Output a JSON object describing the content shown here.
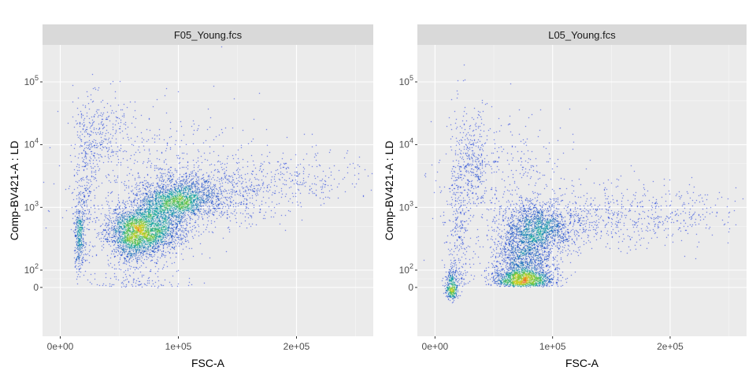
{
  "chart_data": [
    {
      "type": "scatter",
      "panel_title": "F05_Young.fcs",
      "xlabel": "FSC-A",
      "ylabel": "Comp-BV421-A : LD",
      "x_ticks": [
        "0e+00",
        "1e+05",
        "2e+05"
      ],
      "x_tick_values": [
        0,
        100000,
        200000
      ],
      "xlim": [
        -15000,
        265000
      ],
      "y_ticks": [
        {
          "label": "0",
          "value": 0
        },
        {
          "label": "10",
          "exp": "2",
          "value": 100
        },
        {
          "label": "10",
          "exp": "3",
          "value": 1000
        },
        {
          "label": "10",
          "exp": "4",
          "value": 10000
        },
        {
          "label": "10",
          "exp": "5",
          "value": 100000
        }
      ],
      "y_scale": "biexponential",
      "grid": true,
      "density_coloring": true,
      "populations": [
        {
          "x": 72000,
          "y": 450,
          "sx": 16000,
          "sy": 0.2,
          "n": 2600
        },
        {
          "x": 98000,
          "y": 1300,
          "sx": 16000,
          "sy": 0.15,
          "n": 1700
        },
        {
          "x": 60000,
          "y": 320,
          "sx": 9000,
          "sy": 0.22,
          "n": 700
        },
        {
          "x": 125000,
          "y": 1600,
          "sx": 28000,
          "sy": 0.25,
          "n": 700
        },
        {
          "x": 190000,
          "y": 2800,
          "sx": 38000,
          "sy": 0.22,
          "n": 350
        },
        {
          "x": 16000,
          "y": 350,
          "sx": 2000,
          "sy": 0.25,
          "n": 350
        },
        {
          "x": 20000,
          "y": 2000,
          "sx": 5000,
          "sy": 0.6,
          "n": 300
        },
        {
          "x": 35000,
          "y": 15000,
          "sx": 12000,
          "sy": 0.3,
          "n": 250
        },
        {
          "x": 80000,
          "y": 3500,
          "sx": 40000,
          "sy": 0.55,
          "n": 500
        },
        {
          "x": 65000,
          "y": 40,
          "sx": 20000,
          "sy": 0.45,
          "n": 120
        }
      ]
    },
    {
      "type": "scatter",
      "panel_title": "L05_Young.fcs",
      "xlabel": "FSC-A",
      "ylabel": "Comp-BV421-A : LD",
      "x_ticks": [
        "0e+00",
        "1e+05",
        "2e+05"
      ],
      "x_tick_values": [
        0,
        100000,
        200000
      ],
      "xlim": [
        -15000,
        265000
      ],
      "y_ticks": [
        {
          "label": "0",
          "value": 0
        },
        {
          "label": "10",
          "exp": "2",
          "value": 100
        },
        {
          "label": "10",
          "exp": "3",
          "value": 1000
        },
        {
          "label": "10",
          "exp": "4",
          "value": 10000
        },
        {
          "label": "10",
          "exp": "5",
          "value": 100000
        }
      ],
      "y_scale": "biexponential",
      "grid": true,
      "density_coloring": true,
      "populations": [
        {
          "x": 75000,
          "y": 80,
          "sx": 12000,
          "sy": 0.4,
          "n": 2500
        },
        {
          "x": 88000,
          "y": 450,
          "sx": 15000,
          "sy": 0.2,
          "n": 1500
        },
        {
          "x": 140000,
          "y": 700,
          "sx": 42000,
          "sy": 0.25,
          "n": 600
        },
        {
          "x": 14000,
          "y": 0,
          "sx": 2500,
          "sy": 0.35,
          "n": 400
        },
        {
          "x": 20000,
          "y": 800,
          "sx": 5000,
          "sy": 0.8,
          "n": 350
        },
        {
          "x": 33000,
          "y": 6000,
          "sx": 6000,
          "sy": 0.35,
          "n": 250
        },
        {
          "x": 60000,
          "y": 2500,
          "sx": 30000,
          "sy": 0.6,
          "n": 400
        },
        {
          "x": 210000,
          "y": 900,
          "sx": 30000,
          "sy": 0.2,
          "n": 150
        }
      ]
    }
  ]
}
